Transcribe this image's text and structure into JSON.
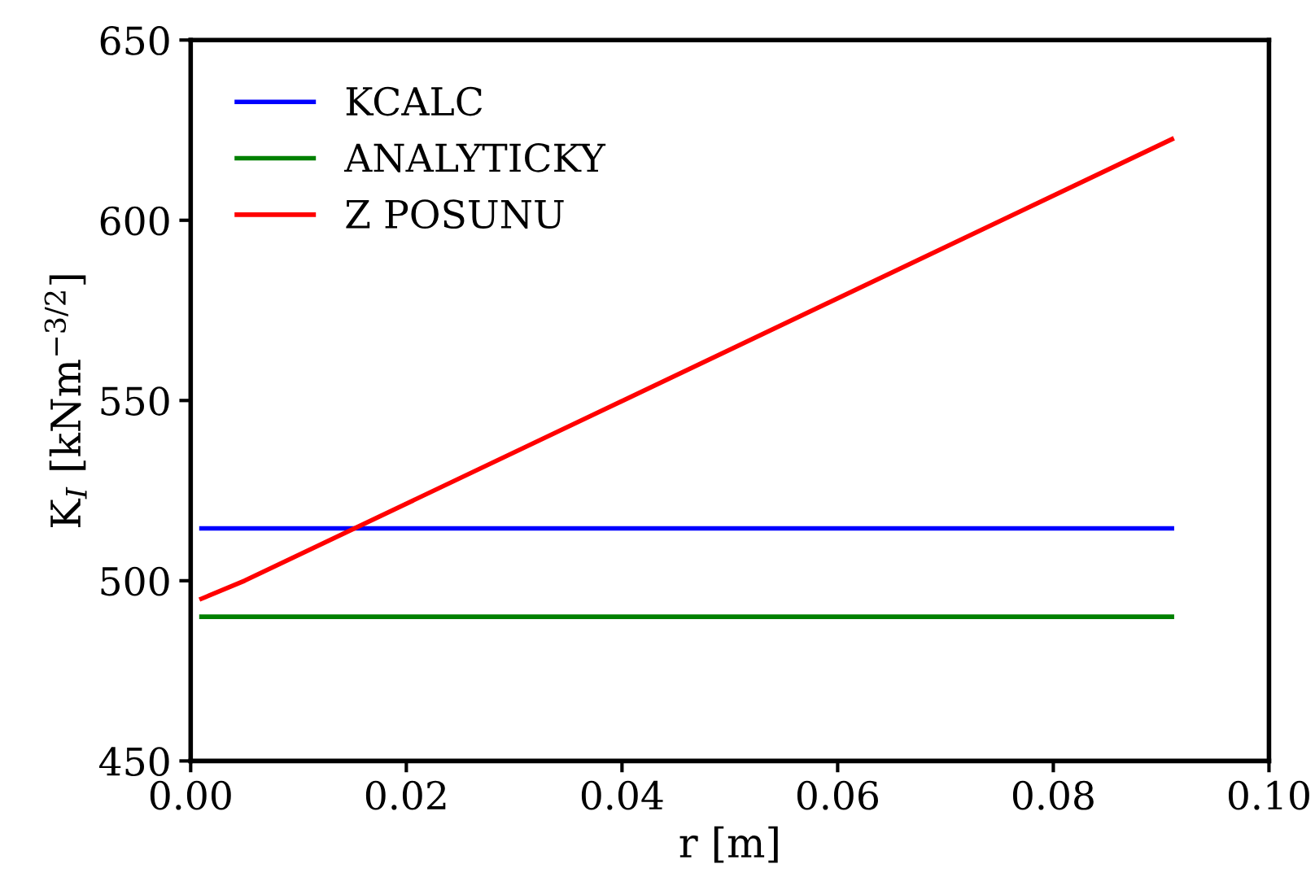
{
  "chart_data": {
    "type": "line",
    "xlabel": "r [m]",
    "ylabel": "K$_{I}$ [kNm$^{−3/2}$]",
    "xlim": [
      0.0,
      0.1
    ],
    "ylim": [
      450,
      650
    ],
    "xticks": [
      {
        "value": 0.0,
        "label": "0.00"
      },
      {
        "value": 0.02,
        "label": "0.02"
      },
      {
        "value": 0.04,
        "label": "0.04"
      },
      {
        "value": 0.06,
        "label": "0.06"
      },
      {
        "value": 0.08,
        "label": "0.08"
      },
      {
        "value": 0.1,
        "label": "0.10"
      }
    ],
    "yticks": [
      450,
      500,
      550,
      600,
      650
    ],
    "legend": "top left",
    "grid": false,
    "marker": "none",
    "line_style": "solid",
    "series": [
      {
        "name": "KCALC",
        "color": "#0000ff",
        "x": [
          0.001,
          0.091
        ],
        "values": [
          514.5,
          514.5
        ]
      },
      {
        "name": "ANALYTICKY",
        "color": "#008000",
        "x": [
          0.001,
          0.091
        ],
        "values": [
          490,
          490
        ]
      },
      {
        "name": "Z POSUNU",
        "color": "#ff0000",
        "x": [
          0.001,
          0.005,
          0.091
        ],
        "values": [
          495,
          500,
          622.5
        ]
      }
    ]
  }
}
